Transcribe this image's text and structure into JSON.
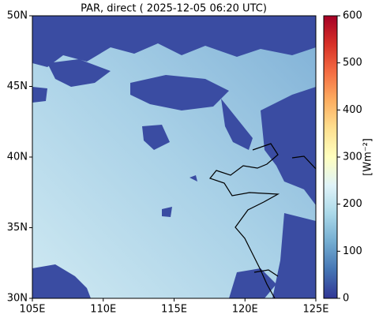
{
  "chart_data": {
    "type": "map",
    "title": "PAR, direct ( 2025-12-05 06:20 UTC)",
    "xlim": [
      105,
      125
    ],
    "xticks": [
      {
        "value": 105,
        "label": "105E"
      },
      {
        "value": 110,
        "label": "110E"
      },
      {
        "value": 115,
        "label": "115E"
      },
      {
        "value": 120,
        "label": "120E"
      },
      {
        "value": 125,
        "label": "125E"
      }
    ],
    "ylim": [
      30,
      50
    ],
    "yticks": [
      {
        "value": 30,
        "label": "30N"
      },
      {
        "value": 35,
        "label": "35N"
      },
      {
        "value": 40,
        "label": "40N"
      },
      {
        "value": 45,
        "label": "45N"
      },
      {
        "value": 50,
        "label": "50N"
      }
    ],
    "colorbar": {
      "label": "[Wm⁻²]",
      "clim": [
        0,
        600
      ],
      "ticks": [
        0,
        100,
        200,
        300,
        400,
        500,
        600
      ]
    }
  }
}
